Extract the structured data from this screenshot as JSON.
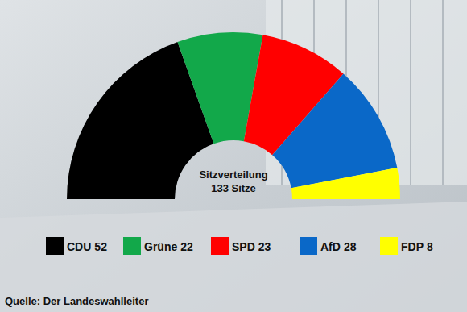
{
  "chart_data": {
    "type": "donut",
    "title": "Sitzverteilung",
    "subtitle": "133 Sitze",
    "categories": [
      "CDU",
      "Grüne",
      "SPD",
      "AfD",
      "FDP"
    ],
    "values": [
      52,
      22,
      23,
      28,
      8
    ],
    "colors": [
      "#000000",
      "#12a84a",
      "#ff0000",
      "#0a68c8",
      "#ffff00"
    ],
    "source": "Quelle: Der Landeswahlleiter"
  }
}
